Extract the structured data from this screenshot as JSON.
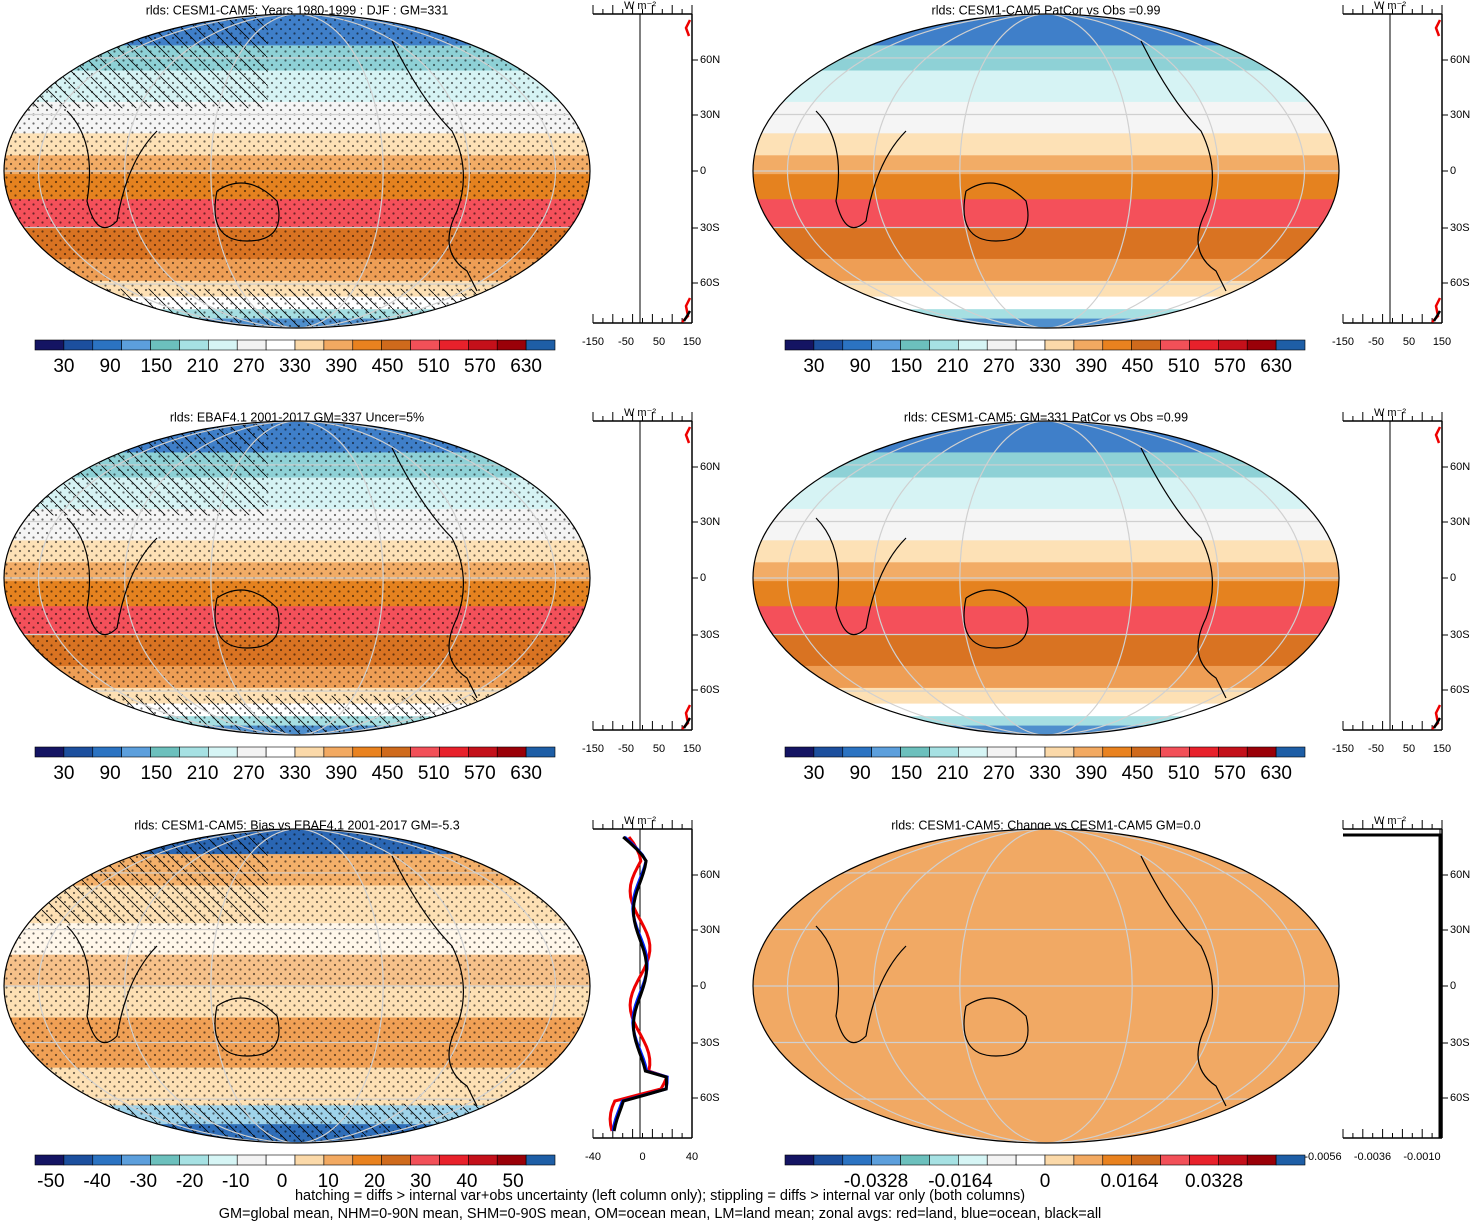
{
  "panels": [
    {
      "title": "rlds: CESM1-CAM5: Years 1980-1999 : DJF : GM=331",
      "colorbar_labels": [
        "30",
        "90",
        "150",
        "210",
        "270",
        "330",
        "390",
        "450",
        "510",
        "570",
        "630"
      ],
      "zonal_unit": "W m⁻²",
      "zonal_xticks": [
        "-150",
        "-50",
        "50",
        "150"
      ],
      "zonal_yticks": [
        "60N",
        "30N",
        "0",
        "30S",
        "60S"
      ]
    },
    {
      "title": "rlds: CESM1-CAM5 PatCor vs Obs =0.99",
      "colorbar_labels": [
        "30",
        "90",
        "150",
        "210",
        "270",
        "330",
        "390",
        "450",
        "510",
        "570",
        "630"
      ],
      "zonal_unit": "W m⁻²",
      "zonal_xticks": [
        "-150",
        "-50",
        "50",
        "150"
      ],
      "zonal_yticks": [
        "60N",
        "30N",
        "0",
        "30S",
        "60S"
      ]
    },
    {
      "title": "rlds: EBAF4.1 2001-2017 GM=337 Uncer=5%",
      "colorbar_labels": [
        "30",
        "90",
        "150",
        "210",
        "270",
        "330",
        "390",
        "450",
        "510",
        "570",
        "630"
      ],
      "zonal_unit": "W m⁻²",
      "zonal_xticks": [
        "-150",
        "-50",
        "50",
        "150"
      ],
      "zonal_yticks": [
        "60N",
        "30N",
        "0",
        "30S",
        "60S"
      ]
    },
    {
      "title": "rlds: CESM1-CAM5: GM=331 PatCor vs Obs =0.99",
      "colorbar_labels": [
        "30",
        "90",
        "150",
        "210",
        "270",
        "330",
        "390",
        "450",
        "510",
        "570",
        "630"
      ],
      "zonal_unit": "W m⁻²",
      "zonal_xticks": [
        "-150",
        "-50",
        "50",
        "150"
      ],
      "zonal_yticks": [
        "60N",
        "30N",
        "0",
        "30S",
        "60S"
      ]
    },
    {
      "title": "rlds: CESM1-CAM5: Bias vs EBAF4.1 2001-2017 GM=-5.3",
      "colorbar_labels": [
        "-50",
        "-40",
        "-30",
        "-20",
        "-10",
        "0",
        "10",
        "20",
        "30",
        "40",
        "50"
      ],
      "zonal_unit": "W m⁻²",
      "zonal_xticks": [
        "-40",
        "0",
        "40"
      ],
      "zonal_yticks": [
        "60N",
        "30N",
        "0",
        "30S",
        "60S"
      ]
    },
    {
      "title": "rlds: CESM1-CAM5: Change vs CESM1-CAM5 GM=0.0",
      "colorbar_labels": [
        "-0.0328",
        "-0.0164",
        "0",
        "0.0164",
        "0.0328"
      ],
      "zonal_unit": "W m⁻²",
      "zonal_xticks": [
        "-0.0056",
        "-0.0036",
        "-0.0010"
      ],
      "zonal_yticks": [
        "60N",
        "30N",
        "0",
        "30S",
        "60S"
      ]
    }
  ],
  "footer": [
    "hatching = diffs > internal var+obs uncertainty (left column only); stippling = diffs > internal var only (both columns)",
    "GM=global mean, NHM=0-90N mean, SHM=0-90S mean, OM=ocean mean, LM=land mean; zonal avgs: red=land, blue=ocean, black=all"
  ]
}
